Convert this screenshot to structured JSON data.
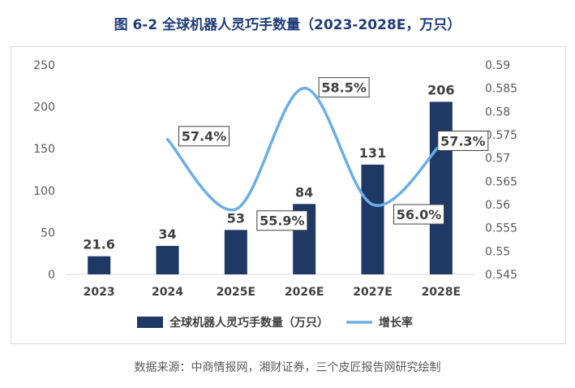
{
  "title": "图  6-2  全球机器人灵巧手数量（2023-2028E，万只）",
  "source": "数据来源：中商情报网，湘财证券，三个皮匠报告网研究绘制",
  "colors": {
    "bar": "#1f3864",
    "line": "#6aaee8",
    "title": "#1f3c78"
  },
  "chart_data": {
    "type": "bar+line",
    "categories": [
      "2023",
      "2024",
      "2025E",
      "2026E",
      "2027E",
      "2028E"
    ],
    "bar_series": {
      "name": "全球机器人灵巧手数量（万只）",
      "values": [
        21.6,
        34,
        53,
        84,
        131,
        206
      ],
      "labels": [
        "21.6",
        "34",
        "53",
        "84",
        "131",
        "206"
      ]
    },
    "line_series": {
      "name": "增长率",
      "values": [
        null,
        0.574,
        0.559,
        0.585,
        0.56,
        0.573
      ],
      "labels": [
        "",
        "57.4%",
        "55.9%",
        "58.5%",
        "56.0%",
        "57.3%"
      ]
    },
    "y_left": {
      "min": 0,
      "max": 250,
      "ticks": [
        "0",
        "50",
        "100",
        "150",
        "200",
        "250"
      ]
    },
    "y_right": {
      "min": 0.545,
      "max": 0.59,
      "ticks": [
        "0.545",
        "0.55",
        "0.555",
        "0.56",
        "0.565",
        "0.57",
        "0.575",
        "0.58",
        "0.585",
        "0.59"
      ]
    },
    "legend_position": "bottom"
  }
}
